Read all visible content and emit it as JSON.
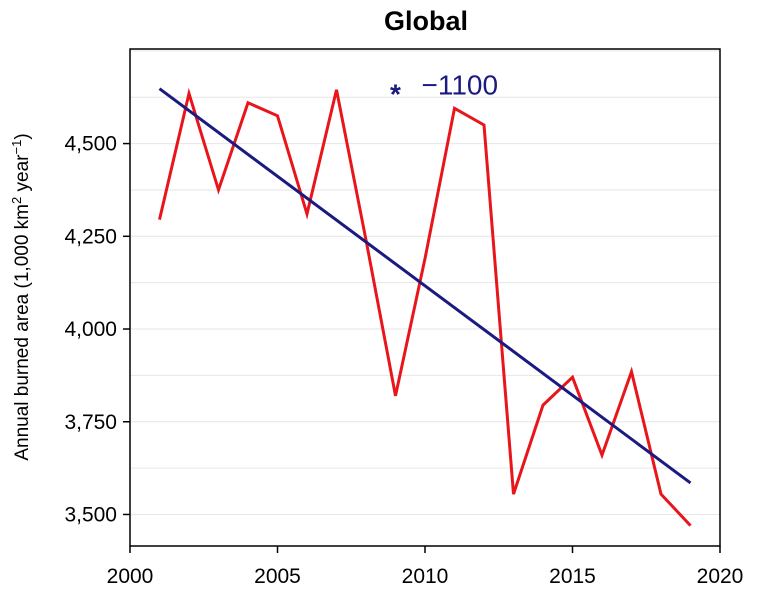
{
  "chart_data": {
    "type": "line",
    "title": "Global",
    "ylabel": "Annual burned area (1,000 km² year⁻¹)",
    "xlabel": "",
    "xlim": [
      2000,
      2020
    ],
    "ylim": [
      3415,
      4755
    ],
    "x_ticks": [
      "2000",
      "2005",
      "2010",
      "2015",
      "2020"
    ],
    "y_ticks": [
      "3,500",
      "3,750",
      "4,000",
      "4,250",
      "4,500"
    ],
    "grid": true,
    "series": [
      {
        "x": [
          2001,
          2002,
          2003,
          2004,
          2005,
          2006,
          2007,
          2008,
          2009,
          2010,
          2011,
          2012,
          2013,
          2014,
          2015,
          2016,
          2017,
          2018,
          2019
        ],
        "values": [
          4295,
          4635,
          4375,
          4610,
          4575,
          4310,
          4645,
          4240,
          3820,
          4190,
          4595,
          4550,
          3555,
          3795,
          3870,
          3660,
          3885,
          3555,
          3470
        ],
        "color": "#e8161b"
      },
      {
        "x": [
          2001,
          2019
        ],
        "values": [
          4648,
          3585
        ],
        "color": "#1a1a80"
      }
    ],
    "annotation": {
      "marker": "*",
      "text": "−1100",
      "x": 2009,
      "y": 4662,
      "color": "#1a1a80"
    }
  }
}
